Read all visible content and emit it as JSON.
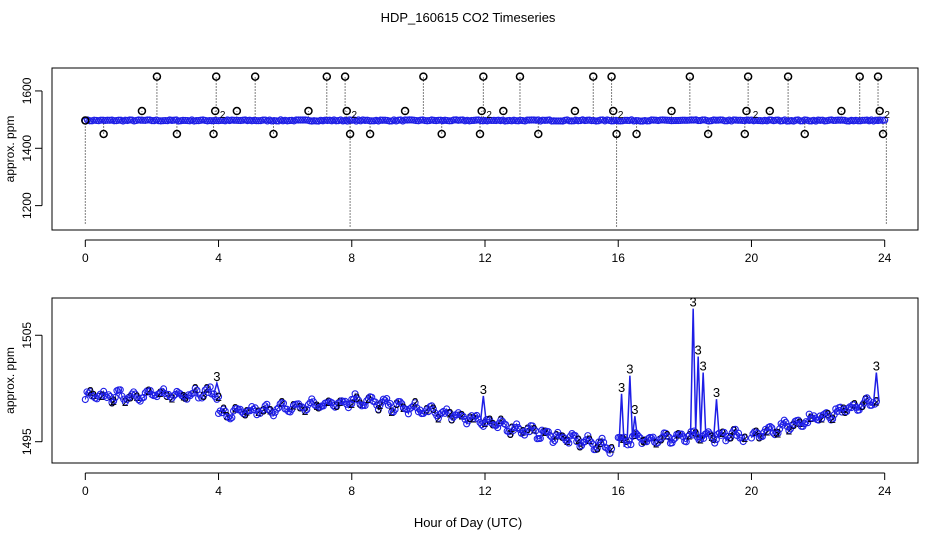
{
  "title": "HDP_160615  CO2 Timeseries",
  "xlabel": "Hour of Day (UTC)",
  "colors": {
    "flag0": "#000000",
    "flag1": "#1e1ee6",
    "flag2": "#22cc22",
    "flag3": "#1e1ee6",
    "axis": "#000000"
  },
  "chart_data": [
    {
      "type": "scatter",
      "name": "full-range panel",
      "ylabel": "approx. ppm",
      "xlim": [
        -1,
        25
      ],
      "ylim": [
        1115,
        1680
      ],
      "xticks": [
        0,
        4,
        8,
        12,
        16,
        20,
        24
      ],
      "yticks": [
        1200,
        1400,
        1600
      ],
      "baseline_ppm": 1497,
      "markers": "circles with drop lines; black = flagged outliers, blue = normal",
      "black_points": [
        {
          "x": 0.0,
          "y": 1497
        },
        {
          "x": 0.55,
          "y": 1450
        },
        {
          "x": 1.7,
          "y": 1530
        },
        {
          "x": 2.15,
          "y": 1650
        },
        {
          "x": 2.75,
          "y": 1450
        },
        {
          "x": 3.85,
          "y": 1450
        },
        {
          "x": 3.9,
          "y": 1530
        },
        {
          "x": 3.93,
          "y": 1650
        },
        {
          "x": 4.55,
          "y": 1530
        },
        {
          "x": 5.1,
          "y": 1650
        },
        {
          "x": 5.65,
          "y": 1450
        },
        {
          "x": 6.7,
          "y": 1530
        },
        {
          "x": 7.25,
          "y": 1650
        },
        {
          "x": 7.8,
          "y": 1650
        },
        {
          "x": 7.85,
          "y": 1530
        },
        {
          "x": 7.95,
          "y": 1450
        },
        {
          "x": 8.55,
          "y": 1450
        },
        {
          "x": 9.6,
          "y": 1530
        },
        {
          "x": 10.15,
          "y": 1650
        },
        {
          "x": 10.7,
          "y": 1450
        },
        {
          "x": 11.85,
          "y": 1450
        },
        {
          "x": 11.9,
          "y": 1530
        },
        {
          "x": 11.95,
          "y": 1650
        },
        {
          "x": 12.55,
          "y": 1530
        },
        {
          "x": 13.05,
          "y": 1650
        },
        {
          "x": 13.6,
          "y": 1450
        },
        {
          "x": 14.7,
          "y": 1530
        },
        {
          "x": 15.25,
          "y": 1650
        },
        {
          "x": 15.8,
          "y": 1650
        },
        {
          "x": 15.85,
          "y": 1530
        },
        {
          "x": 15.95,
          "y": 1450
        },
        {
          "x": 16.55,
          "y": 1450
        },
        {
          "x": 17.6,
          "y": 1530
        },
        {
          "x": 18.15,
          "y": 1650
        },
        {
          "x": 18.7,
          "y": 1450
        },
        {
          "x": 19.8,
          "y": 1450
        },
        {
          "x": 19.85,
          "y": 1530
        },
        {
          "x": 19.9,
          "y": 1650
        },
        {
          "x": 20.55,
          "y": 1530
        },
        {
          "x": 21.1,
          "y": 1650
        },
        {
          "x": 21.6,
          "y": 1450
        },
        {
          "x": 22.7,
          "y": 1530
        },
        {
          "x": 23.25,
          "y": 1650
        },
        {
          "x": 23.8,
          "y": 1650
        },
        {
          "x": 23.85,
          "y": 1530
        },
        {
          "x": 23.95,
          "y": 1450
        }
      ],
      "dips": [
        {
          "x": 0.0,
          "y": 1135
        },
        {
          "x": 7.95,
          "y": 1125
        },
        {
          "x": 15.95,
          "y": 1125
        },
        {
          "x": 24.05,
          "y": 1135
        }
      ]
    },
    {
      "type": "scatter",
      "name": "zoomed panel",
      "ylabel": "approx. ppm",
      "xlim": [
        -1,
        25
      ],
      "ylim": [
        1493,
        1508.5
      ],
      "xticks": [
        0,
        4,
        8,
        12,
        16,
        20,
        24
      ],
      "yticks": [
        1495,
        1505
      ],
      "markers": "blue circles with numeric flag labels 2 (green) and 3 (blue)",
      "segments": [
        {
          "x0": 0.0,
          "x1": 4.0,
          "y0": 1499.2,
          "y1": 1499.6
        },
        {
          "x0": 4.0,
          "x1": 8.0,
          "y0": 1497.5,
          "y1": 1498.8
        },
        {
          "x0": 8.0,
          "x1": 12.0,
          "y0": 1499.0,
          "y1": 1497.0
        },
        {
          "x0": 12.0,
          "x1": 15.8,
          "y0": 1496.8,
          "y1": 1494.5
        },
        {
          "x0": 16.0,
          "x1": 19.8,
          "y0": 1495.2,
          "y1": 1495.6
        },
        {
          "x0": 20.0,
          "x1": 23.75,
          "y0": 1495.6,
          "y1": 1498.8
        }
      ],
      "spikes": [
        {
          "x": 3.95,
          "y": 1500.5
        },
        {
          "x": 11.95,
          "y": 1499.3
        },
        {
          "x": 16.1,
          "y": 1499.5
        },
        {
          "x": 16.35,
          "y": 1501.2
        },
        {
          "x": 16.5,
          "y": 1497.4
        },
        {
          "x": 18.25,
          "y": 1507.5
        },
        {
          "x": 18.4,
          "y": 1503.0
        },
        {
          "x": 18.55,
          "y": 1501.5
        },
        {
          "x": 18.95,
          "y": 1499.0
        },
        {
          "x": 23.75,
          "y": 1501.5
        }
      ]
    }
  ]
}
